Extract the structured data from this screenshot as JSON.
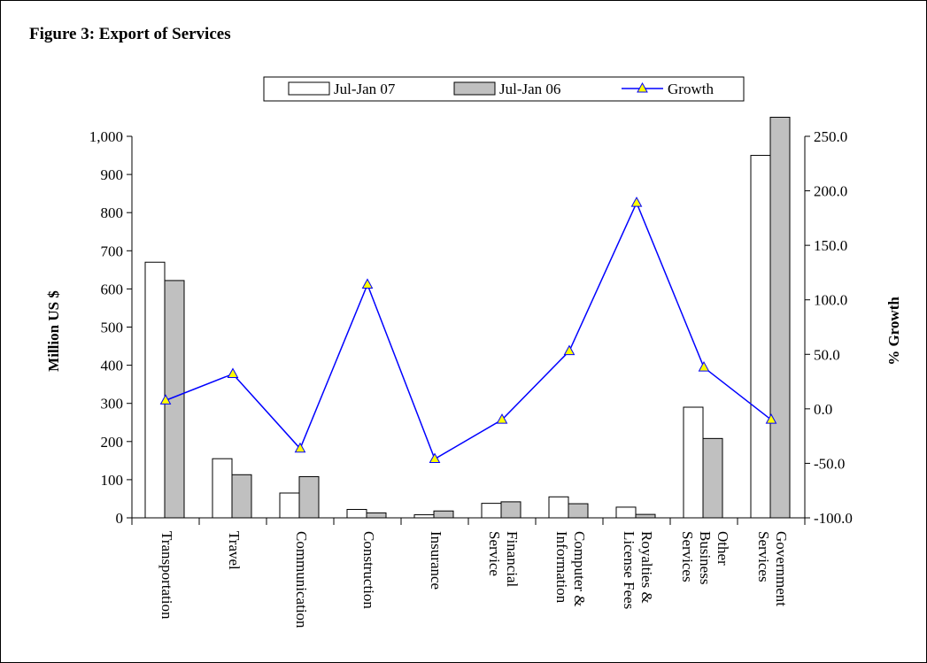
{
  "figure_title": "Figure 3: Export of Services",
  "legend": {
    "series1": "Jul-Jan 07",
    "series2": "Jul-Jan 06",
    "growth": "Growth"
  },
  "axes": {
    "left_label": "Million US $",
    "right_label": "% Growth"
  },
  "colors": {
    "series1_fill": "#ffffff",
    "series2_fill": "#c0c0c0",
    "growth_line": "#0000ff",
    "growth_marker": "#ffff00"
  },
  "chart_data": {
    "type": "bar",
    "title": "Figure 3: Export of Services",
    "categories": [
      [
        "Transportation"
      ],
      [
        "Travel"
      ],
      [
        "Communication"
      ],
      [
        "Construction"
      ],
      [
        "Insurance"
      ],
      [
        "Financial",
        "Service"
      ],
      [
        "Computer &",
        "Information"
      ],
      [
        "Royalties &",
        "License Fees"
      ],
      [
        "Other",
        "Business",
        "Services"
      ],
      [
        "Government",
        "Services"
      ]
    ],
    "series": [
      {
        "name": "Jul-Jan 07",
        "axis": "left",
        "values": [
          670,
          155,
          65,
          22,
          8,
          38,
          55,
          28,
          290,
          950
        ]
      },
      {
        "name": "Jul-Jan 06",
        "axis": "left",
        "values": [
          622,
          113,
          108,
          13,
          18,
          42,
          37,
          9,
          208,
          1050
        ]
      },
      {
        "name": "Growth",
        "axis": "right",
        "type": "line",
        "values": [
          7.7,
          32.0,
          -36.5,
          114.0,
          -46.0,
          -10.0,
          53.0,
          189.0,
          38.0,
          -10.0
        ]
      }
    ],
    "ylabel": "Million US $",
    "y2label": "% Growth",
    "ylim": [
      0,
      1000
    ],
    "y2lim": [
      -100,
      250
    ],
    "yticks": [
      "0",
      "100",
      "200",
      "300",
      "400",
      "500",
      "600",
      "700",
      "800",
      "900",
      "1,000"
    ],
    "y2ticks": [
      "-100.0",
      "-50.0",
      "0.0",
      "50.0",
      "100.0",
      "150.0",
      "200.0",
      "250.0"
    ],
    "legend_position": "top",
    "grid": false
  }
}
